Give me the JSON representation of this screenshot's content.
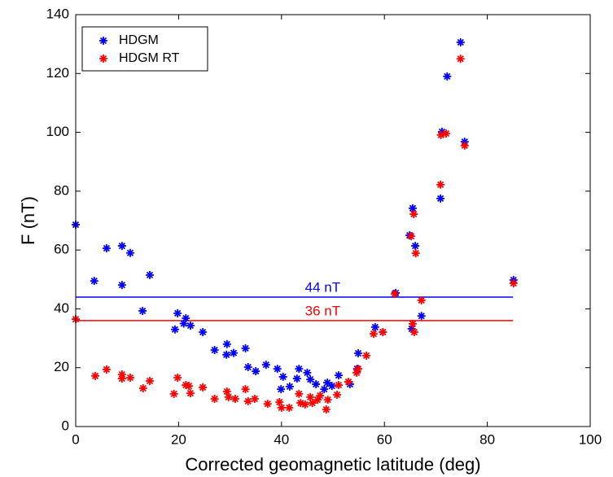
{
  "chart_data": {
    "type": "scatter",
    "x_label": "Corrected geomagnetic latitude (deg)",
    "y_label": "F (nT)",
    "xlim": [
      0,
      100
    ],
    "ylim": [
      0,
      140
    ],
    "xticks": [
      0,
      20,
      40,
      60,
      80,
      100
    ],
    "yticks": [
      0,
      20,
      40,
      60,
      80,
      100,
      120,
      140
    ],
    "legend": "upper left",
    "series": [
      {
        "name": "HDGM",
        "color": "#0000ff",
        "x": [
          0,
          3.6,
          6,
          9,
          9,
          10.6,
          14.4,
          13,
          19.8,
          19.3,
          21.4,
          21,
          22.3,
          24.7,
          27,
          29.4,
          29.3,
          30.7,
          33,
          33.5,
          35,
          37,
          39.2,
          40.3,
          39.9,
          41.6,
          43.4,
          43,
          45,
          45.6,
          46.7,
          48.3,
          48.9,
          49.8,
          51.1,
          53.3,
          54.9,
          54.7,
          58.2,
          59.7,
          62.2,
          64.9,
          65.5,
          66,
          67.2,
          65.3,
          70.9,
          71.2,
          72.2,
          74.8,
          75.6,
          85.1
        ],
        "values": [
          68.6,
          49.5,
          60.6,
          61.4,
          48.1,
          59,
          51.5,
          39.3,
          38.5,
          33,
          36.8,
          35,
          34.3,
          32.1,
          26,
          28,
          24.4,
          25,
          26.6,
          20.2,
          18.8,
          21,
          19.6,
          16.9,
          12.7,
          13.6,
          19.6,
          16.3,
          18.3,
          16,
          14.4,
          12.7,
          14.9,
          13.8,
          17.4,
          14.4,
          24.9,
          19.6,
          33.8,
          32.1,
          45.4,
          65,
          74.2,
          61.4,
          37.6,
          33.2,
          77.5,
          100.2,
          119,
          130.6,
          96.8,
          49.8
        ]
      },
      {
        "name": "HDGM RT",
        "color": "#ff0000",
        "x": [
          0,
          3.8,
          6,
          9,
          9,
          10.6,
          13.1,
          14.4,
          19.1,
          19.8,
          21.4,
          22,
          22.3,
          24.7,
          27,
          29.4,
          29.7,
          31,
          33,
          33.5,
          34.8,
          37.3,
          39.6,
          40,
          41.5,
          43.4,
          43.7,
          44.6,
          45.6,
          46,
          47,
          47.5,
          48.7,
          49,
          50.8,
          51.1,
          53,
          54.6,
          54.9,
          56.5,
          57.9,
          59.7,
          62,
          65.2,
          65.7,
          66.1,
          67.2,
          65.5,
          65.8,
          70.9,
          71,
          72,
          74.8,
          75.6,
          85.1
        ],
        "values": [
          36.5,
          17.2,
          19.4,
          17.7,
          16.3,
          16.6,
          13,
          15.5,
          11.1,
          16.6,
          14.1,
          13.8,
          11.3,
          13.3,
          9.4,
          11.9,
          10,
          9.4,
          12.7,
          8.6,
          9.4,
          7.7,
          8.3,
          6.4,
          6.4,
          11.1,
          8,
          7.5,
          10,
          8,
          9.1,
          10.5,
          5.8,
          9.1,
          10.8,
          14.1,
          15.2,
          18.3,
          19.6,
          24.1,
          31.5,
          32.1,
          45.1,
          64.7,
          72.2,
          58.9,
          42.9,
          34.9,
          32.1,
          82.2,
          99.1,
          99.6,
          125,
          95.5,
          48.7
        ]
      }
    ],
    "reference_lines": [
      {
        "value": 44,
        "label": "44 nT",
        "color": "#0000ff",
        "xrange": [
          0,
          85
        ]
      },
      {
        "value": 36,
        "label": "36 nT",
        "color": "#ff0000",
        "xrange": [
          0,
          85
        ]
      }
    ]
  }
}
